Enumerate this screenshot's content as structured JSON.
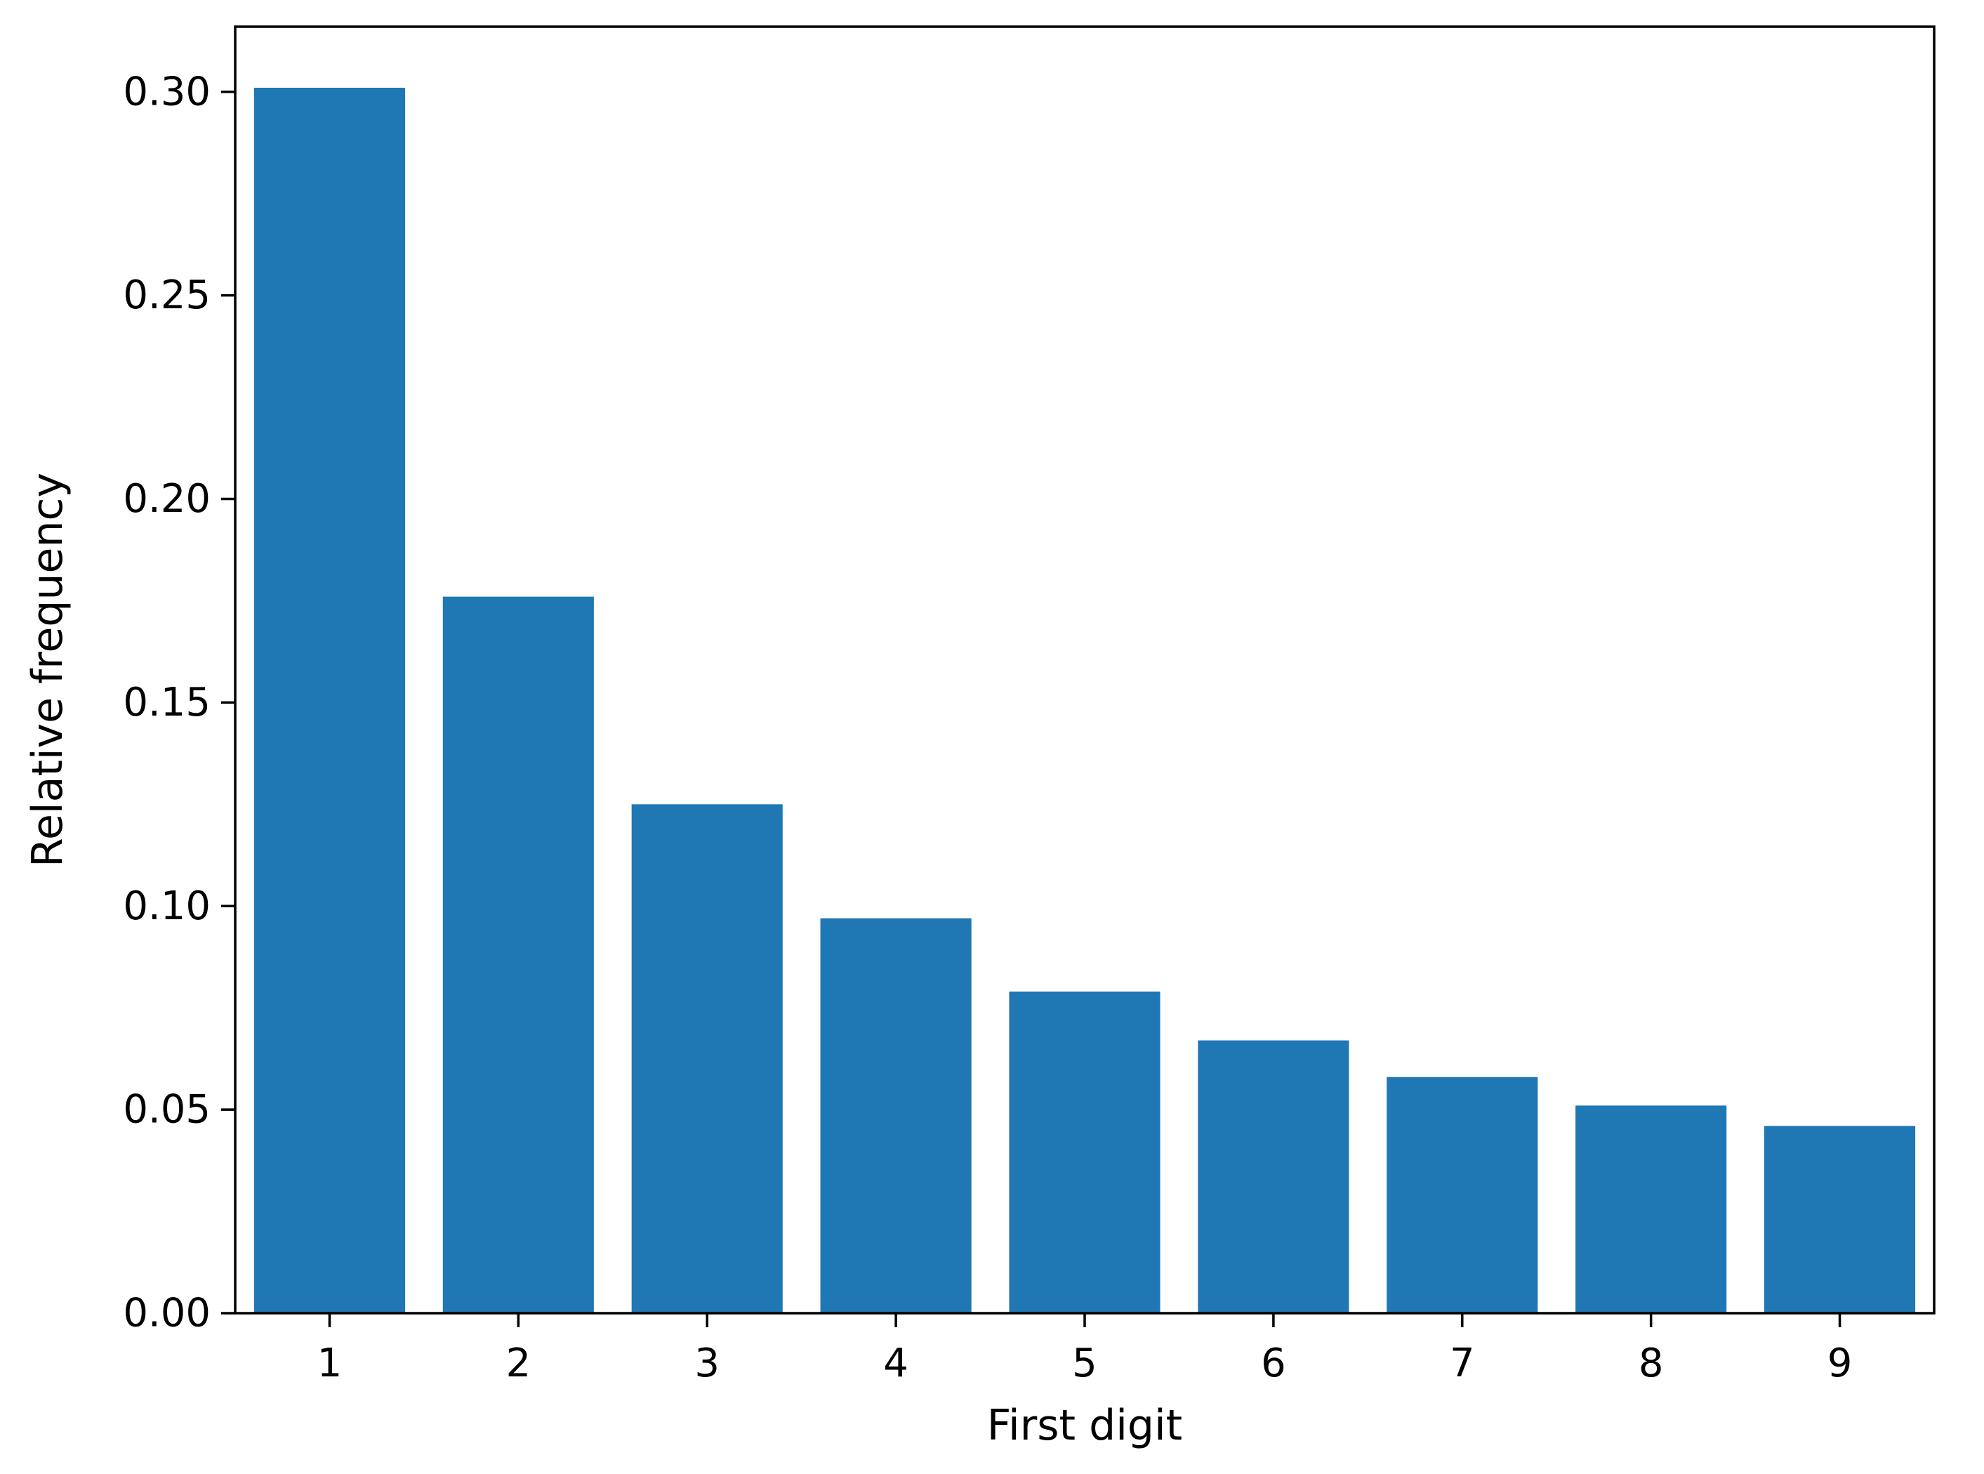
{
  "chart_data": {
    "type": "bar",
    "xlabel": "First digit",
    "ylabel": "Relative frequency",
    "categories": [
      "1",
      "2",
      "3",
      "4",
      "5",
      "6",
      "7",
      "8",
      "9"
    ],
    "values": [
      0.301,
      0.176,
      0.125,
      0.097,
      0.079,
      0.067,
      0.058,
      0.051,
      0.046
    ],
    "ylim": [
      0,
      0.316
    ],
    "xlim": [
      0.5,
      9.5
    ],
    "yticks": [
      0.0,
      0.05,
      0.1,
      0.15,
      0.2,
      0.25,
      0.3
    ],
    "ytick_labels": [
      "0.00",
      "0.05",
      "0.10",
      "0.15",
      "0.20",
      "0.25",
      "0.30"
    ],
    "bar_color": "#1f77b4",
    "grid": false,
    "legend": "none"
  }
}
